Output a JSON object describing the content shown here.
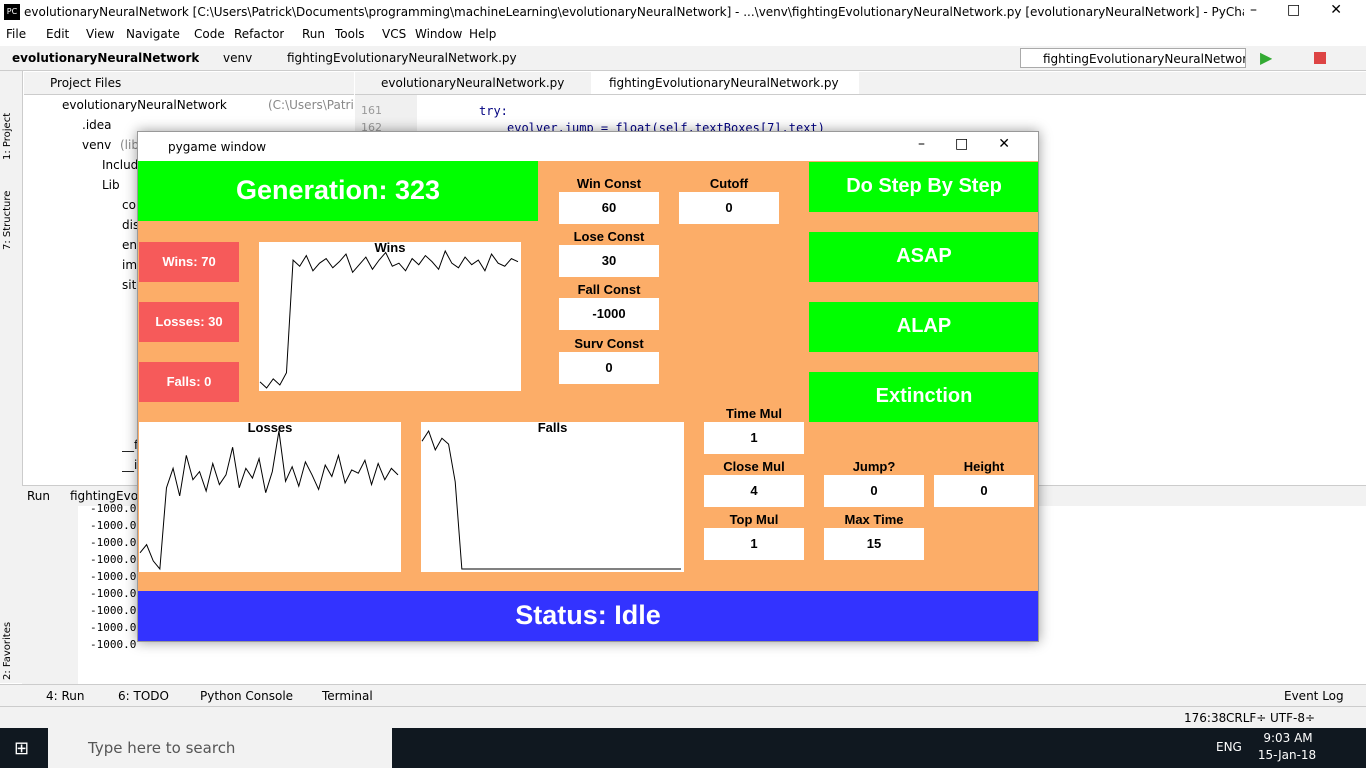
{
  "ide": {
    "title": "evolutionaryNeuralNetwork [C:\\Users\\Patrick\\Documents\\programming\\machineLearning\\evolutionaryNeuralNetwork] - ...\\venv\\fightingEvolutionaryNeuralNetwork.py [evolutionaryNeuralNetwork] - PyCharm",
    "menu": [
      "File",
      "Edit",
      "View",
      "Navigate",
      "Code",
      "Refactor",
      "Run",
      "Tools",
      "VCS",
      "Window",
      "Help"
    ],
    "breadcrumbs": [
      "evolutionaryNeuralNetwork",
      "venv",
      "fightingEvolutionaryNeuralNetwork.py"
    ],
    "run_config": "fightingEvolutionaryNeuralNetwork",
    "project_panel": "Project Files",
    "side_tabs": [
      "1: Project",
      "7: Structure",
      "2: Favorites"
    ],
    "editor_tabs": [
      "evolutionaryNeuralNetwork.py",
      "fightingEvolutionaryNeuralNetwork.py"
    ],
    "tree": [
      {
        "label": "evolutionaryNeuralNetwork",
        "note": "(C:\\Users\\Patrick\\Documen",
        "depth": 0
      },
      {
        "label": ".idea",
        "depth": 1
      },
      {
        "label": "venv",
        "note": "(libra",
        "depth": 1
      },
      {
        "label": "Includ",
        "depth": 2
      },
      {
        "label": "Lib",
        "depth": 2
      },
      {
        "label": "co",
        "depth": 3
      },
      {
        "label": "dis",
        "depth": 3
      },
      {
        "label": "en",
        "depth": 3
      },
      {
        "label": "im",
        "depth": 3
      },
      {
        "label": "site",
        "depth": 3
      }
    ],
    "tree_files": [
      "__f",
      "__i"
    ],
    "code": [
      {
        "line": 161,
        "text": "try:"
      },
      {
        "line": 162,
        "text": "evolver.jump = float(self.textBoxes[7].text)"
      }
    ],
    "run_label": "Run",
    "run_tab": "fightingEvolu",
    "console": [
      "-1000.0",
      "-1000.0",
      "-1000.0",
      "-1000.0",
      "-1000.0",
      "-1000.0",
      "-1000.0",
      "-1000.0",
      "-1000.0"
    ],
    "bottom_tabs": [
      "4: Run",
      "6: TODO",
      "Python Console",
      "Terminal"
    ],
    "event_log": "Event Log",
    "status": [
      "176:38",
      "CRLF÷",
      "UTF-8÷"
    ]
  },
  "pygame": {
    "title": "pygame window",
    "generation": "Generation: 323",
    "counters": [
      "Wins: 70",
      "Losses: 30",
      "Falls: 0"
    ],
    "fields": [
      {
        "label": "Win Const",
        "value": 60
      },
      {
        "label": "Cutoff",
        "value": 0
      },
      {
        "label": "Lose Const",
        "value": 30
      },
      {
        "label": "Fall Const",
        "value": -1000
      },
      {
        "label": "Surv Const",
        "value": 0
      },
      {
        "label": "Time Mul",
        "value": 1
      },
      {
        "label": "Close Mul",
        "value": 4
      },
      {
        "label": "Jump?",
        "value": 0
      },
      {
        "label": "Height",
        "value": 0
      },
      {
        "label": "Top Mul",
        "value": 1
      },
      {
        "label": "Max Time",
        "value": 15
      }
    ],
    "buttons": [
      "Do Step By Step",
      "ASAP",
      "ALAP",
      "Extinction"
    ],
    "status": "Status: Idle",
    "charts": [
      {
        "title": "Wins",
        "values": [
          12,
          8,
          14,
          10,
          18,
          92,
          88,
          95,
          85,
          90,
          93,
          87,
          91,
          96,
          84,
          89,
          94,
          86,
          92,
          97,
          88,
          90,
          85,
          93,
          89,
          95,
          91,
          86,
          98,
          90,
          87,
          94,
          89,
          92,
          85,
          96,
          90,
          88,
          93,
          91
        ]
      },
      {
        "title": "Losses",
        "values": [
          20,
          25,
          15,
          10,
          60,
          72,
          55,
          80,
          65,
          70,
          58,
          75,
          62,
          68,
          85,
          60,
          72,
          66,
          78,
          57,
          70,
          95,
          64,
          73,
          61,
          76,
          68,
          59,
          74,
          67,
          80,
          63,
          71,
          69,
          77,
          62,
          75,
          65,
          72,
          68
        ]
      },
      {
        "title": "Falls",
        "values": [
          88,
          95,
          82,
          90,
          86,
          60,
          0,
          0,
          0,
          0,
          0,
          0,
          0,
          0,
          0,
          0,
          0,
          0,
          0,
          0,
          0,
          0,
          0,
          0,
          0,
          0,
          0,
          0,
          0,
          0,
          0,
          0,
          0,
          0,
          0,
          0,
          0,
          0,
          0,
          0
        ]
      }
    ]
  },
  "taskbar": {
    "search": "Type here to search",
    "lang": "ENG",
    "time": "9:03 AM",
    "date": "15-Jan-18"
  }
}
